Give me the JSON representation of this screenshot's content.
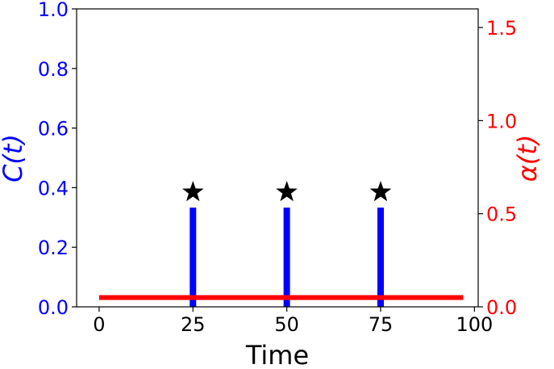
{
  "chart_data": {
    "type": "bar",
    "xlabel": "Time",
    "ylabel_left": "C(t)",
    "ylabel_right": "α(t)",
    "xlim": [
      -6,
      101
    ],
    "ylim_left": [
      0,
      1.0
    ],
    "ylim_right": [
      0,
      1.6
    ],
    "x_ticks": [
      0,
      25,
      50,
      75,
      100
    ],
    "x_tick_labels": [
      "0",
      "25",
      "50",
      "75",
      "100"
    ],
    "y_left_ticks": [
      0.0,
      0.2,
      0.4,
      0.6,
      0.8,
      1.0
    ],
    "y_left_tick_labels": [
      "0.0",
      "0.2",
      "0.4",
      "0.6",
      "0.8",
      "1.0"
    ],
    "y_right_ticks": [
      0.0,
      0.5,
      1.0,
      1.5
    ],
    "y_right_tick_labels": [
      "0.0",
      "0.5",
      "1.0",
      "1.5"
    ],
    "bars": {
      "x": [
        25,
        50,
        75
      ],
      "values": [
        0.333,
        0.333,
        0.333
      ],
      "color": "#0000ff",
      "axis": "left"
    },
    "markers": {
      "x": [
        25,
        50,
        75
      ],
      "y": [
        0.385,
        0.385,
        0.385
      ],
      "symbol": "star",
      "color": "#000000",
      "axis": "left"
    },
    "line": {
      "x": [
        0,
        97
      ],
      "y": [
        0.05,
        0.05
      ],
      "color": "#ff0000",
      "axis": "right"
    },
    "colors": {
      "left_axis": "#0000ff",
      "right_axis": "#ff0000",
      "markers": "#000000"
    },
    "grid": false
  }
}
